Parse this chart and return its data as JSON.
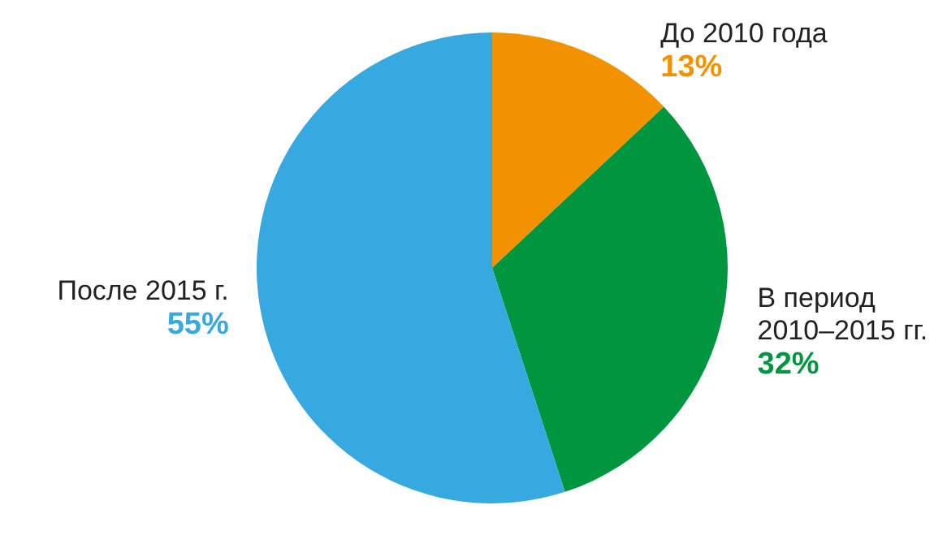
{
  "chart_data": {
    "type": "pie",
    "categories": [
      "До 2010 года",
      "В период 2010–2015 гг.",
      "После 2015 г."
    ],
    "values": [
      13,
      32,
      55
    ],
    "colors": [
      "#f39200",
      "#00963f",
      "#36a9e1"
    ],
    "value_labels": [
      "13%",
      "32%",
      "55%"
    ]
  }
}
